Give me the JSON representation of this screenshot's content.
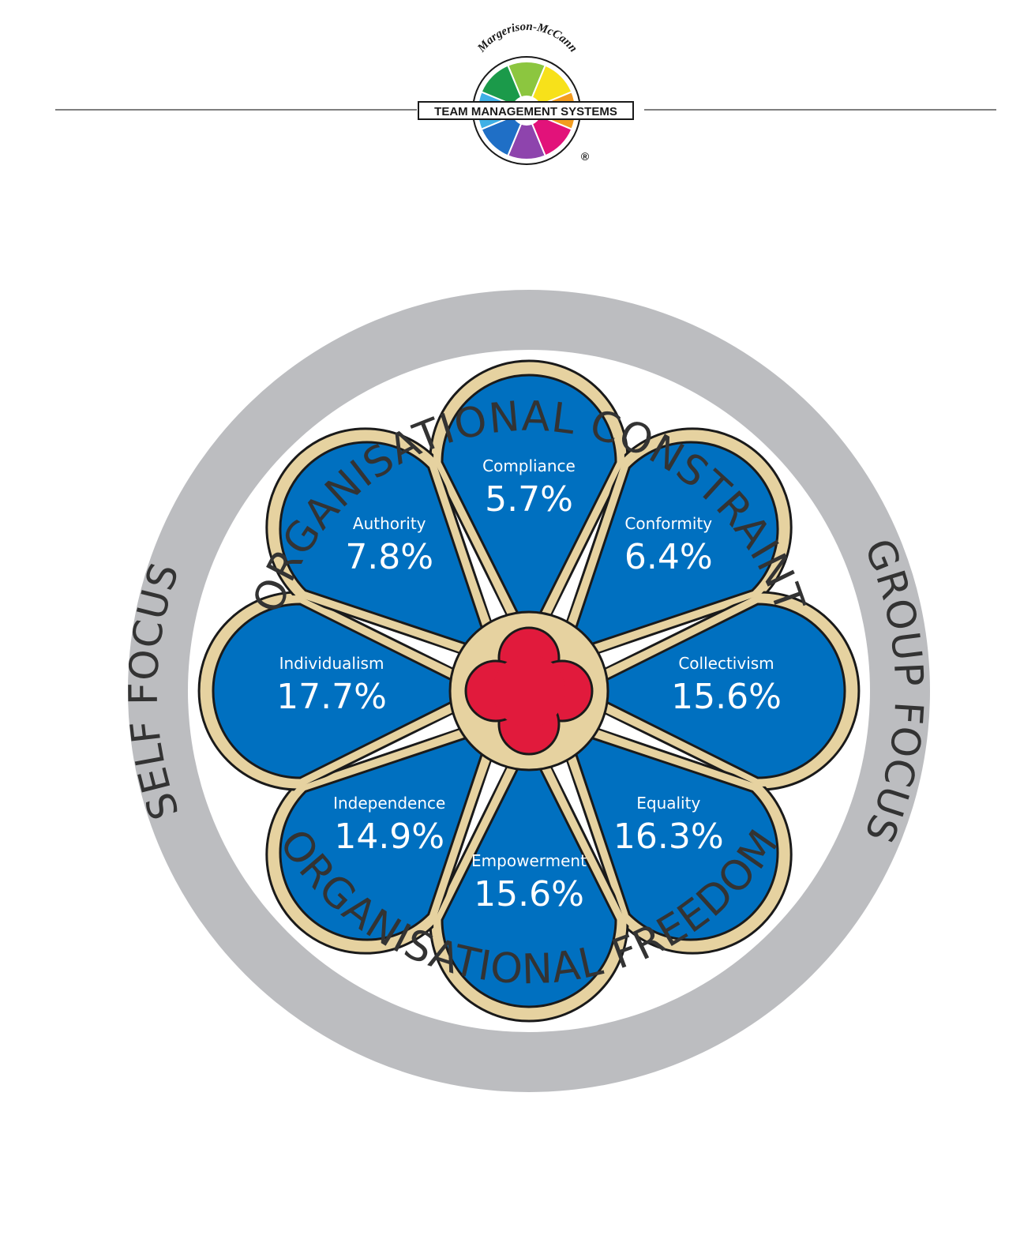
{
  "header": {
    "logo": {
      "brand_arc_text": "Margerison-McCann",
      "banner_text": "TEAM MANAGEMENT SYSTEMS",
      "registered_mark": "®",
      "segment_colors": [
        "#8cc63f",
        "#f7e11a",
        "#f39c1f",
        "#e2127a",
        "#8e44ad",
        "#1f6fc6",
        "#3fb0e6",
        "#1b9a4a"
      ]
    }
  },
  "wheel": {
    "ring_labels": {
      "top": "ORGANISATIONAL CONSTRAINT",
      "bottom": "ORGANISATIONAL FREEDOM",
      "left": "SELF FOCUS",
      "right": "GROUP FOCUS"
    },
    "colors": {
      "ring": "#bcbdc0",
      "frame": "#e6d2a0",
      "petal": "#0070c0",
      "center": "#e11a3c",
      "outline": "#1a1a1a"
    },
    "petals": [
      {
        "name": "Compliance",
        "value": "5.7%"
      },
      {
        "name": "Conformity",
        "value": "6.4%"
      },
      {
        "name": "Collectivism",
        "value": "15.6%"
      },
      {
        "name": "Equality",
        "value": "16.3%"
      },
      {
        "name": "Empowerment",
        "value": "15.6%"
      },
      {
        "name": "Independence",
        "value": "14.9%"
      },
      {
        "name": "Individualism",
        "value": "17.7%"
      },
      {
        "name": "Authority",
        "value": "7.8%"
      }
    ]
  }
}
